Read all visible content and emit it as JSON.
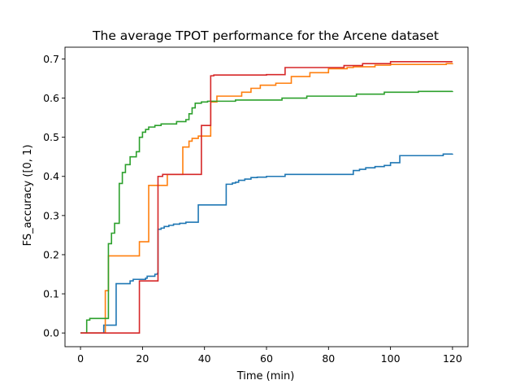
{
  "chart_data": {
    "type": "line",
    "title": "The average TPOT performance for the Arcene dataset",
    "xlabel": "Time (min)",
    "ylabel": "FS_accuracy ([0, 1)",
    "xlim": [
      -5,
      125
    ],
    "ylim": [
      -0.035,
      0.73
    ],
    "x_ticks": [
      0,
      20,
      40,
      60,
      80,
      100,
      120
    ],
    "x_tick_labels": [
      "0",
      "20",
      "40",
      "60",
      "80",
      "100",
      "120"
    ],
    "y_ticks": [
      0.0,
      0.1,
      0.2,
      0.3,
      0.4,
      0.5,
      0.6,
      0.7
    ],
    "y_tick_labels": [
      "0.0",
      "0.1",
      "0.2",
      "0.3",
      "0.4",
      "0.5",
      "0.6",
      "0.7"
    ],
    "grid": false,
    "legend": "none",
    "step": "post",
    "series": [
      {
        "color": "#1f77b4",
        "points": [
          [
            0,
            0.0
          ],
          [
            7,
            0.0
          ],
          [
            7.5,
            0.02
          ],
          [
            11,
            0.02
          ],
          [
            11.5,
            0.126
          ],
          [
            15,
            0.126
          ],
          [
            16,
            0.133
          ],
          [
            17,
            0.137
          ],
          [
            21,
            0.14
          ],
          [
            21.5,
            0.145
          ],
          [
            24,
            0.15
          ],
          [
            24.8,
            0.152
          ],
          [
            25,
            0.265
          ],
          [
            26,
            0.268
          ],
          [
            27,
            0.272
          ],
          [
            28.5,
            0.275
          ],
          [
            30,
            0.278
          ],
          [
            32,
            0.28
          ],
          [
            34,
            0.283
          ],
          [
            38,
            0.327
          ],
          [
            47,
            0.38
          ],
          [
            49,
            0.383
          ],
          [
            50,
            0.385
          ],
          [
            51,
            0.39
          ],
          [
            53,
            0.393
          ],
          [
            55,
            0.397
          ],
          [
            57,
            0.398
          ],
          [
            60,
            0.4
          ],
          [
            66,
            0.405
          ],
          [
            88,
            0.415
          ],
          [
            90,
            0.418
          ],
          [
            92,
            0.422
          ],
          [
            95,
            0.425
          ],
          [
            98,
            0.428
          ],
          [
            100,
            0.435
          ],
          [
            103,
            0.453
          ],
          [
            117,
            0.457
          ],
          [
            120,
            0.458
          ]
        ]
      },
      {
        "color": "#ff7f0e",
        "points": [
          [
            0,
            0.0
          ],
          [
            7.5,
            0.0
          ],
          [
            8,
            0.108
          ],
          [
            9,
            0.197
          ],
          [
            19,
            0.233
          ],
          [
            22,
            0.377
          ],
          [
            28,
            0.405
          ],
          [
            33,
            0.475
          ],
          [
            35,
            0.49
          ],
          [
            36,
            0.497
          ],
          [
            38,
            0.503
          ],
          [
            42,
            0.59
          ],
          [
            44,
            0.605
          ],
          [
            52,
            0.615
          ],
          [
            55,
            0.625
          ],
          [
            58,
            0.633
          ],
          [
            63,
            0.638
          ],
          [
            68,
            0.655
          ],
          [
            74,
            0.665
          ],
          [
            80,
            0.675
          ],
          [
            86,
            0.678
          ],
          [
            88,
            0.68
          ],
          [
            95,
            0.684
          ],
          [
            100,
            0.686
          ],
          [
            118,
            0.688
          ],
          [
            120,
            0.689
          ]
        ]
      },
      {
        "color": "#2ca02c",
        "points": [
          [
            0,
            0.0
          ],
          [
            2,
            0.033
          ],
          [
            3,
            0.037
          ],
          [
            9,
            0.228
          ],
          [
            10,
            0.255
          ],
          [
            11,
            0.28
          ],
          [
            12.5,
            0.382
          ],
          [
            13.5,
            0.41
          ],
          [
            14.5,
            0.43
          ],
          [
            16,
            0.45
          ],
          [
            18,
            0.463
          ],
          [
            19,
            0.5
          ],
          [
            20,
            0.513
          ],
          [
            21,
            0.52
          ],
          [
            22,
            0.526
          ],
          [
            24,
            0.53
          ],
          [
            26,
            0.534
          ],
          [
            31,
            0.54
          ],
          [
            34,
            0.545
          ],
          [
            35,
            0.56
          ],
          [
            36,
            0.575
          ],
          [
            37,
            0.587
          ],
          [
            39,
            0.59
          ],
          [
            41,
            0.592
          ],
          [
            50,
            0.595
          ],
          [
            65,
            0.6
          ],
          [
            73,
            0.605
          ],
          [
            89,
            0.61
          ],
          [
            98,
            0.615
          ],
          [
            109,
            0.617
          ],
          [
            120,
            0.618
          ]
        ]
      },
      {
        "color": "#d62728",
        "points": [
          [
            0,
            0.0
          ],
          [
            19,
            0.133
          ],
          [
            25,
            0.4
          ],
          [
            26.5,
            0.405
          ],
          [
            39,
            0.53
          ],
          [
            42,
            0.657
          ],
          [
            43,
            0.659
          ],
          [
            60,
            0.66
          ],
          [
            66,
            0.678
          ],
          [
            85,
            0.683
          ],
          [
            91,
            0.688
          ],
          [
            100,
            0.693
          ],
          [
            120,
            0.693
          ]
        ]
      }
    ]
  }
}
